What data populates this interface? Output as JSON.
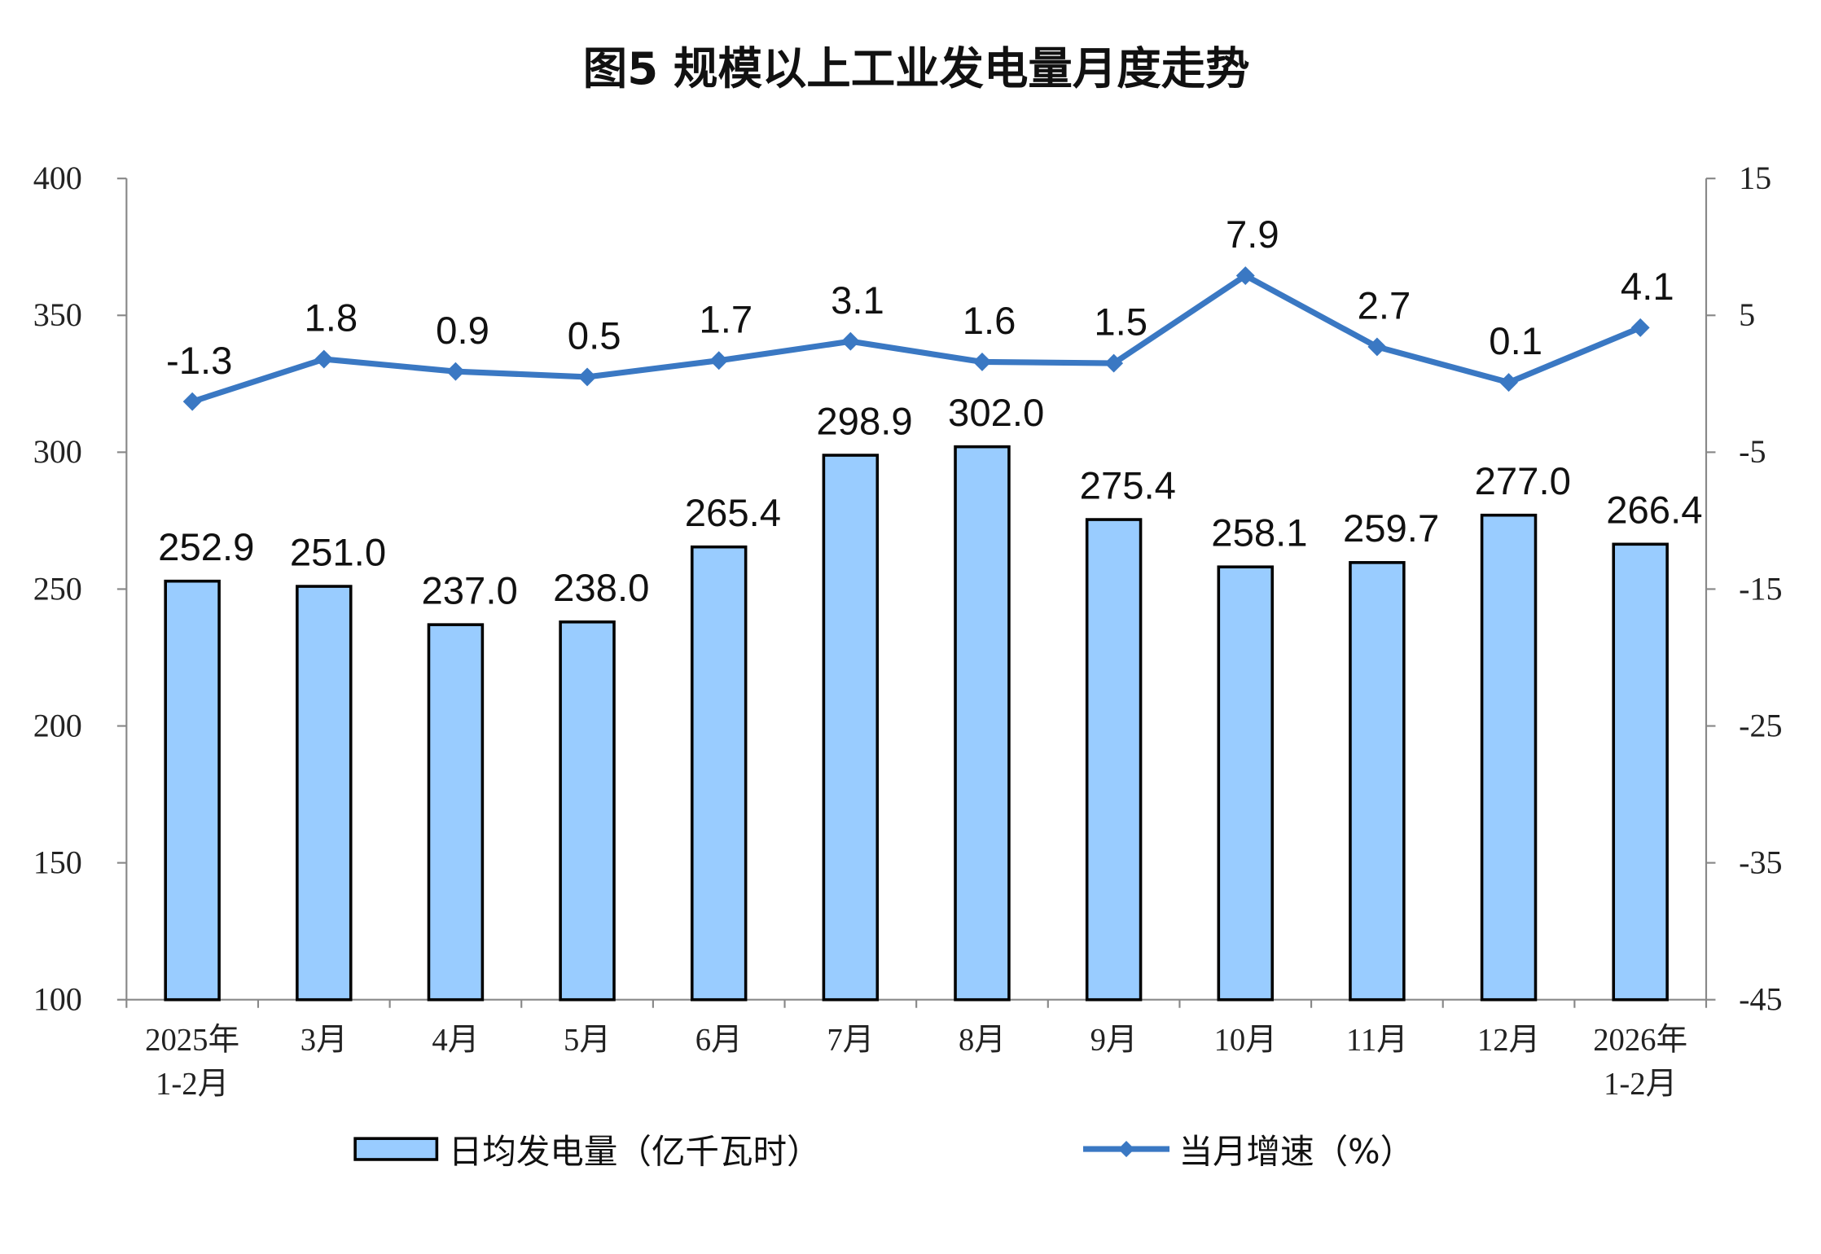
{
  "chart_data": {
    "type": "bar+line",
    "title": "图5  规模以上工业发电量月度走势",
    "categories": [
      [
        "2025年",
        "1-2月"
      ],
      [
        "3月"
      ],
      [
        "4月"
      ],
      [
        "5月"
      ],
      [
        "6月"
      ],
      [
        "7月"
      ],
      [
        "8月"
      ],
      [
        "9月"
      ],
      [
        "10月"
      ],
      [
        "11月"
      ],
      [
        "12月"
      ],
      [
        "2026年",
        "1-2月"
      ]
    ],
    "series": [
      {
        "name": "日均发电量（亿千瓦时）",
        "type": "bar",
        "axis": "left",
        "color": "#99CCFF",
        "values": [
          252.9,
          251.0,
          237.0,
          238.0,
          265.4,
          298.9,
          302.0,
          275.4,
          258.1,
          259.7,
          277.0,
          266.4
        ],
        "labels": [
          "252.9",
          "251.0",
          "237.0",
          "238.0",
          "265.4",
          "298.9",
          "302.0",
          "275.4",
          "258.1",
          "259.7",
          "277.0",
          "266.4"
        ]
      },
      {
        "name": "当月增速（%）",
        "type": "line",
        "axis": "right",
        "color": "#3A78C3",
        "values": [
          -1.3,
          1.8,
          0.9,
          0.5,
          1.7,
          3.1,
          1.6,
          1.5,
          7.9,
          2.7,
          0.1,
          4.1
        ],
        "labels": [
          "-1.3",
          "1.8",
          "0.9",
          "0.5",
          "1.7",
          "3.1",
          "1.6",
          "1.5",
          "7.9",
          "2.7",
          "0.1",
          "4.1"
        ]
      }
    ],
    "y_left": {
      "ylim": [
        100,
        400
      ],
      "ticks": [
        "100",
        "150",
        "200",
        "250",
        "300",
        "350",
        "400"
      ]
    },
    "y_right": {
      "ylim": [
        -45,
        15
      ],
      "ticks": [
        "-45",
        "-35",
        "-25",
        "-15",
        "-5",
        "5",
        "15"
      ]
    },
    "grid": false,
    "legend_position": "bottom"
  }
}
